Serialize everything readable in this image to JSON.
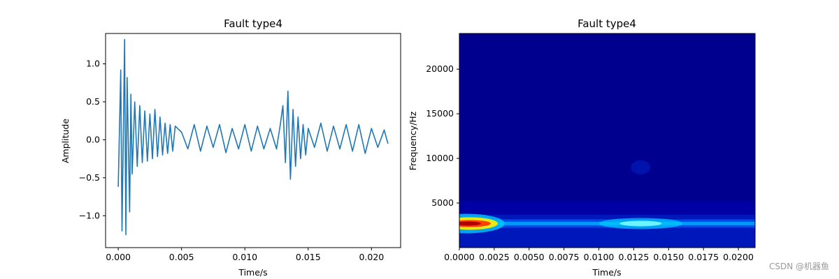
{
  "watermark": "CSDN @机器鱼",
  "chart_data": [
    {
      "type": "line",
      "title": "Fault type4",
      "xlabel": "Time/s",
      "ylabel": "Amplitude",
      "xlim": [
        -0.001,
        0.0223
      ],
      "ylim": [
        -1.42,
        1.4
      ],
      "xticks": [
        0.0,
        0.005,
        0.01,
        0.015,
        0.02
      ],
      "xtick_labels": [
        "0.000",
        "0.005",
        "0.010",
        "0.015",
        "0.020"
      ],
      "yticks": [
        -1.0,
        -0.5,
        0.0,
        0.5,
        1.0
      ],
      "ytick_labels": [
        "−1.0",
        "−0.5",
        "0.0",
        "0.5",
        "1.0"
      ],
      "grid": false,
      "color": "#1f77b4",
      "series": [
        {
          "x": [
            0.0,
            0.0002,
            0.0003,
            0.0005,
            0.0006,
            0.0007,
            0.0009,
            0.001,
            0.0011,
            0.0013,
            0.0015,
            0.0017,
            0.0019,
            0.0021,
            0.0023,
            0.0025,
            0.0027,
            0.0029,
            0.0031,
            0.0033,
            0.0035,
            0.0037,
            0.0039,
            0.0041,
            0.0043,
            0.0045,
            0.005,
            0.0055,
            0.006,
            0.0065,
            0.007,
            0.0075,
            0.008,
            0.0085,
            0.009,
            0.0095,
            0.01,
            0.0105,
            0.011,
            0.0115,
            0.012,
            0.0125,
            0.0128,
            0.013,
            0.0132,
            0.0134,
            0.0136,
            0.0138,
            0.014,
            0.0142,
            0.0144,
            0.0146,
            0.0148,
            0.015,
            0.0155,
            0.016,
            0.0165,
            0.017,
            0.0175,
            0.018,
            0.0185,
            0.019,
            0.0195,
            0.02,
            0.0205,
            0.021,
            0.0213
          ],
          "values": [
            -0.62,
            0.92,
            -1.2,
            1.32,
            -1.25,
            0.82,
            -0.95,
            0.6,
            -0.45,
            0.5,
            -0.35,
            0.45,
            -0.3,
            0.38,
            -0.28,
            0.34,
            -0.25,
            0.4,
            -0.22,
            0.3,
            -0.2,
            0.22,
            -0.18,
            0.2,
            -0.15,
            0.18,
            0.1,
            -0.12,
            0.2,
            -0.15,
            0.18,
            -0.1,
            0.2,
            -0.17,
            0.15,
            -0.12,
            0.2,
            -0.15,
            0.18,
            -0.12,
            0.15,
            -0.12,
            0.2,
            0.45,
            -0.3,
            0.64,
            -0.52,
            0.4,
            -0.35,
            0.3,
            -0.25,
            0.2,
            -0.2,
            0.15,
            -0.1,
            0.22,
            -0.15,
            0.18,
            -0.12,
            0.2,
            -0.15,
            0.2,
            -0.18,
            0.15,
            -0.1,
            0.13,
            -0.05
          ]
        }
      ]
    },
    {
      "type": "heatmap",
      "title": "Fault type4",
      "xlabel": "Time/s",
      "ylabel": "Frequency/Hz",
      "xlim": [
        0.0,
        0.0212
      ],
      "ylim": [
        0,
        24000
      ],
      "xticks": [
        0.0,
        0.0025,
        0.005,
        0.0075,
        0.01,
        0.0125,
        0.015,
        0.0175,
        0.02
      ],
      "xtick_labels": [
        "0.0000",
        "0.0025",
        "0.0050",
        "0.0075",
        "0.0100",
        "0.0125",
        "0.0150",
        "0.0175",
        "0.0200"
      ],
      "yticks": [
        5000,
        10000,
        15000,
        20000
      ],
      "ytick_labels": [
        "5000",
        "10000",
        "15000",
        "20000"
      ],
      "colormap": "jet",
      "dominant_band_hz": 2700,
      "peak_times_s": [
        0.0005,
        0.013
      ],
      "grid": false
    }
  ]
}
